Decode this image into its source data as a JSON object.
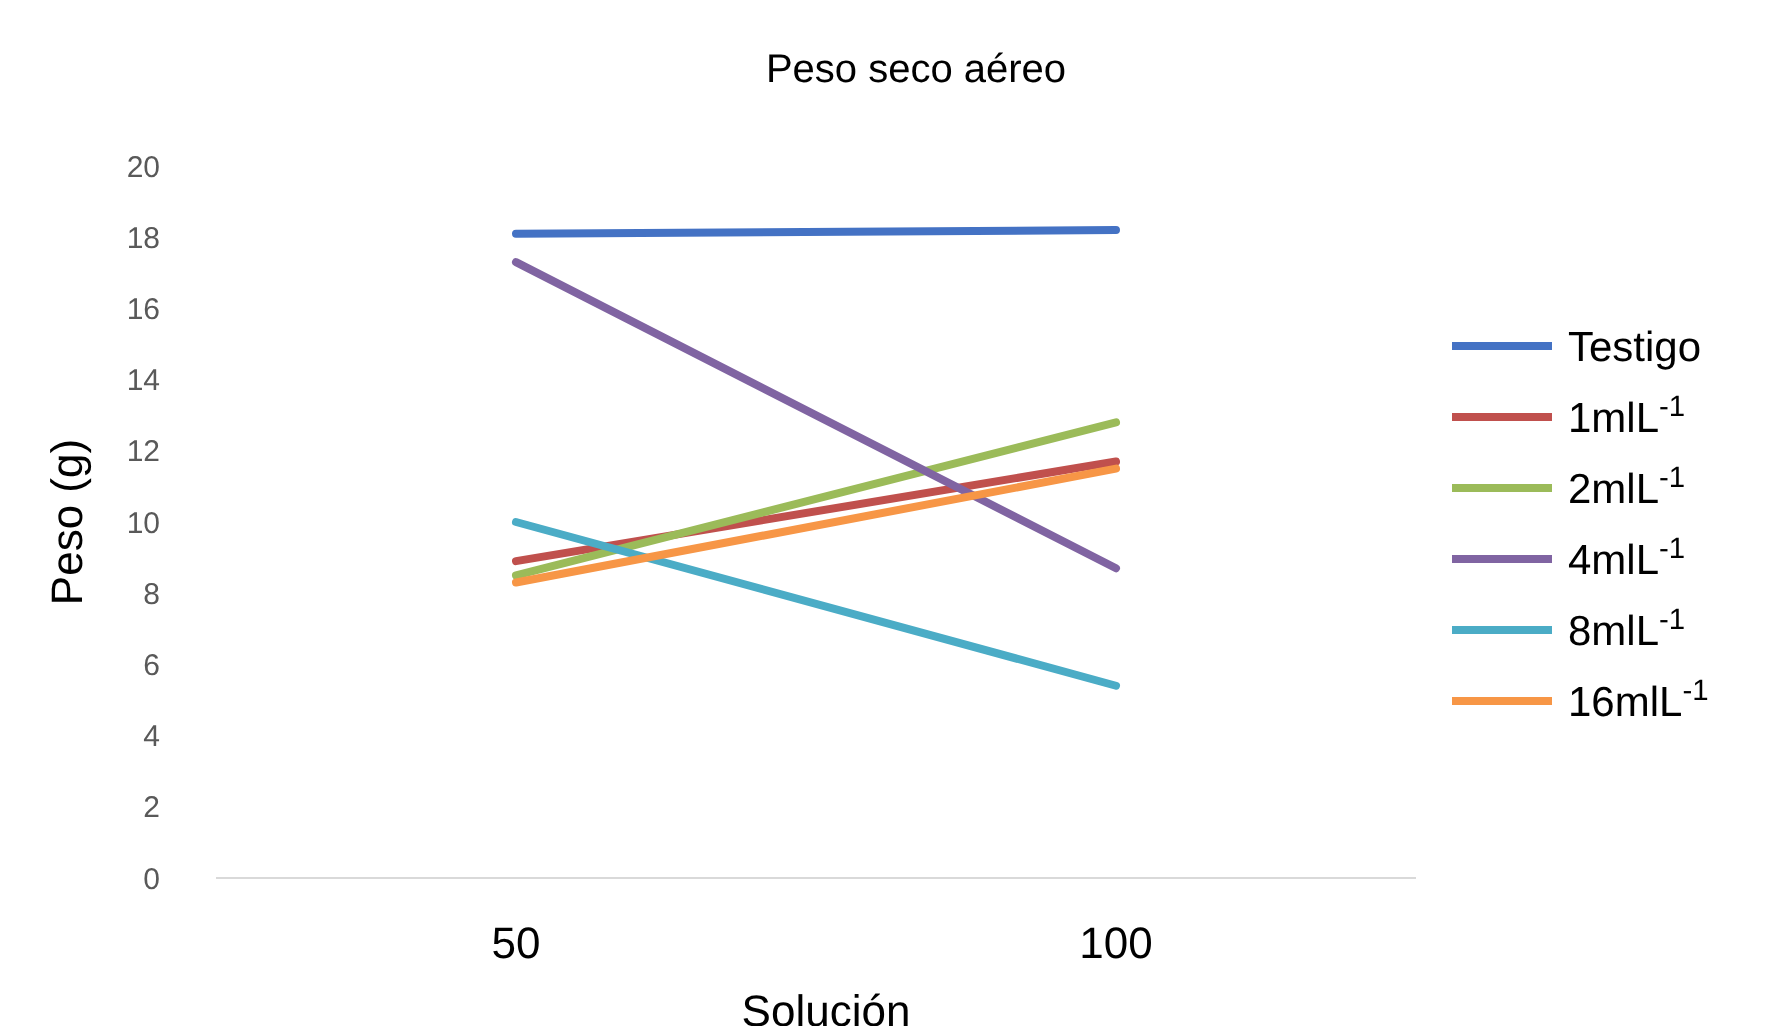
{
  "chart_data": {
    "type": "line",
    "title": "Peso seco aéreo",
    "xlabel": "Solución",
    "ylabel": "Peso (g)",
    "categories": [
      "50",
      "100"
    ],
    "ylim": [
      0,
      20
    ],
    "yticks": [
      0,
      2,
      4,
      6,
      8,
      10,
      12,
      14,
      16,
      18,
      20
    ],
    "grid": false,
    "legend": "right",
    "marker": "none",
    "line_style": "solid",
    "series": [
      {
        "name": "Testigo",
        "color": "#4472c4",
        "values": [
          18.1,
          18.2
        ]
      },
      {
        "name": "1mlL$^{-1}$",
        "color": "#c0504d",
        "values": [
          8.9,
          11.7
        ]
      },
      {
        "name": "2mlL$^{-1}$",
        "color": "#9bbb59",
        "values": [
          8.5,
          12.8
        ]
      },
      {
        "name": "4mlL$^{-1}$",
        "color": "#8064a2",
        "values": [
          17.3,
          8.7
        ]
      },
      {
        "name": "8mlL$^{-1}$",
        "color": "#4bacc6",
        "values": [
          10.0,
          5.4
        ]
      },
      {
        "name": "16mlL$^{-1}$",
        "color": "#f79646",
        "values": [
          8.3,
          11.5
        ]
      }
    ]
  }
}
